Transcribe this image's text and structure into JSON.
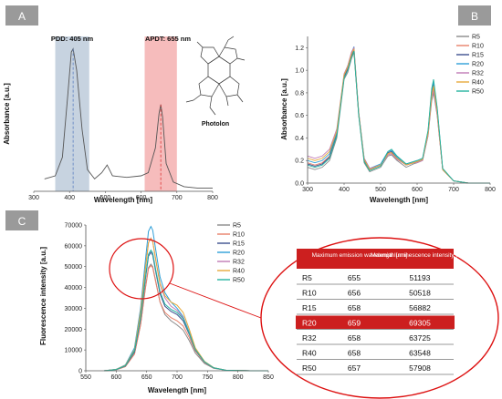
{
  "panels": {
    "A": {
      "label": "A",
      "xlabel": "Wavelength [nm]",
      "ylabel": "Absorbance [a.u.]",
      "x_ticks": [
        "300",
        "400",
        "500",
        "600",
        "700",
        "800"
      ],
      "band1_label": "PDD: 405 nm",
      "band2_label": "APDT: 655 nm",
      "molecule_label": "Photolon"
    },
    "B": {
      "label": "B",
      "xlabel": "Wavelength [nm]",
      "ylabel": "Absorbance [a.u.]",
      "x_ticks": [
        "300",
        "400",
        "500",
        "600",
        "700",
        "800"
      ],
      "y_ticks": [
        "0.0",
        "0.2",
        "0.4",
        "0.6",
        "0.8",
        "1.0",
        "1.2"
      ]
    },
    "C": {
      "label": "C",
      "xlabel": "Wavelength [nm]",
      "ylabel": "Fluorescence intensity [a.u.]",
      "x_ticks": [
        "550",
        "600",
        "650",
        "700",
        "750",
        "800",
        "850"
      ],
      "y_ticks": [
        "0",
        "10000",
        "20000",
        "30000",
        "40000",
        "50000",
        "60000",
        "70000"
      ]
    }
  },
  "legend": [
    {
      "name": "R5",
      "color": "#8a8a8a"
    },
    {
      "name": "R10",
      "color": "#e8806a"
    },
    {
      "name": "R15",
      "color": "#3d4f8f"
    },
    {
      "name": "R20",
      "color": "#2e9fd8"
    },
    {
      "name": "R32",
      "color": "#c07ab5"
    },
    {
      "name": "R40",
      "color": "#e6a93a"
    },
    {
      "name": "R50",
      "color": "#24b3a0"
    }
  ],
  "table": {
    "header_col2": "Maximum emission wavelength [nm]",
    "header_col3": "Maxmial luminescence intensity [a.u.]",
    "rows": [
      {
        "sample": "R5",
        "wavelength": "655",
        "intensity": "51193"
      },
      {
        "sample": "R10",
        "wavelength": "656",
        "intensity": "50518"
      },
      {
        "sample": "R15",
        "wavelength": "658",
        "intensity": "56882"
      },
      {
        "sample": "R20",
        "wavelength": "659",
        "intensity": "69305",
        "highlight": true
      },
      {
        "sample": "R32",
        "wavelength": "658",
        "intensity": "63725"
      },
      {
        "sample": "R40",
        "wavelength": "658",
        "intensity": "63548"
      },
      {
        "sample": "R50",
        "wavelength": "657",
        "intensity": "57908"
      }
    ]
  },
  "chart_data": [
    {
      "type": "line",
      "panel": "A",
      "xlim": [
        300,
        800
      ],
      "series": [
        {
          "x": [
            330,
            360,
            380,
            395,
            405,
            410,
            420,
            435,
            450,
            470,
            490,
            505,
            520,
            560,
            600,
            620,
            640,
            650,
            655,
            660,
            670,
            690,
            720,
            760,
            800
          ],
          "values": [
            0.08,
            0.1,
            0.22,
            0.62,
            0.9,
            0.92,
            0.78,
            0.4,
            0.14,
            0.08,
            0.12,
            0.17,
            0.1,
            0.09,
            0.1,
            0.12,
            0.28,
            0.5,
            0.56,
            0.48,
            0.18,
            0.06,
            0.03,
            0.02,
            0.02
          ]
        }
      ],
      "bands": [
        [
          360,
          455
        ],
        [
          610,
          700
        ]
      ]
    },
    {
      "type": "line",
      "panel": "B",
      "xlim": [
        300,
        800
      ],
      "ylim": [
        0,
        1.3
      ],
      "x": [
        300,
        320,
        340,
        360,
        380,
        400,
        410,
        420,
        427,
        440,
        455,
        470,
        500,
        520,
        530,
        545,
        570,
        590,
        600,
        615,
        630,
        640,
        645,
        655,
        670,
        700,
        740,
        800
      ],
      "series": [
        {
          "name": "R5",
          "values": [
            0.14,
            0.12,
            0.14,
            0.2,
            0.4,
            0.92,
            0.98,
            1.1,
            1.16,
            0.6,
            0.18,
            0.1,
            0.14,
            0.24,
            0.25,
            0.2,
            0.14,
            0.17,
            0.18,
            0.2,
            0.42,
            0.73,
            0.8,
            0.6,
            0.12,
            0.02,
            0.0,
            0.0
          ]
        },
        {
          "name": "R10",
          "values": [
            0.18,
            0.16,
            0.18,
            0.24,
            0.44,
            0.95,
            1.02,
            1.13,
            1.19,
            0.62,
            0.2,
            0.12,
            0.16,
            0.26,
            0.27,
            0.22,
            0.16,
            0.18,
            0.19,
            0.21,
            0.44,
            0.76,
            0.84,
            0.62,
            0.12,
            0.02,
            0.0,
            0.0
          ]
        },
        {
          "name": "R15",
          "values": [
            0.17,
            0.15,
            0.17,
            0.23,
            0.43,
            0.94,
            1.01,
            1.12,
            1.18,
            0.61,
            0.2,
            0.12,
            0.16,
            0.27,
            0.28,
            0.22,
            0.16,
            0.18,
            0.19,
            0.21,
            0.45,
            0.8,
            0.88,
            0.64,
            0.12,
            0.02,
            0.0,
            0.0
          ]
        },
        {
          "name": "R20",
          "values": [
            0.2,
            0.18,
            0.2,
            0.26,
            0.45,
            0.96,
            1.04,
            1.15,
            1.21,
            0.63,
            0.22,
            0.13,
            0.17,
            0.28,
            0.29,
            0.23,
            0.17,
            0.19,
            0.2,
            0.22,
            0.46,
            0.82,
            0.9,
            0.66,
            0.13,
            0.02,
            0.0,
            0.0
          ]
        },
        {
          "name": "R32",
          "values": [
            0.24,
            0.22,
            0.24,
            0.3,
            0.48,
            0.97,
            1.04,
            1.16,
            1.2,
            0.63,
            0.22,
            0.13,
            0.16,
            0.25,
            0.26,
            0.21,
            0.16,
            0.18,
            0.18,
            0.2,
            0.42,
            0.76,
            0.82,
            0.6,
            0.12,
            0.02,
            0.0,
            0.0
          ]
        },
        {
          "name": "R40",
          "values": [
            0.22,
            0.2,
            0.22,
            0.28,
            0.46,
            0.96,
            1.03,
            1.14,
            1.19,
            0.62,
            0.21,
            0.12,
            0.16,
            0.26,
            0.27,
            0.22,
            0.16,
            0.18,
            0.19,
            0.21,
            0.44,
            0.78,
            0.86,
            0.63,
            0.12,
            0.02,
            0.0,
            0.0
          ]
        },
        {
          "name": "R50",
          "values": [
            0.16,
            0.14,
            0.16,
            0.22,
            0.42,
            0.93,
            1.0,
            1.11,
            1.17,
            0.6,
            0.19,
            0.11,
            0.15,
            0.28,
            0.3,
            0.24,
            0.17,
            0.19,
            0.2,
            0.22,
            0.47,
            0.84,
            0.92,
            0.67,
            0.13,
            0.02,
            0.0,
            0.0
          ]
        }
      ]
    },
    {
      "type": "line",
      "panel": "C",
      "xlim": [
        550,
        850
      ],
      "ylim": [
        0,
        70000
      ],
      "x": [
        580,
        600,
        615,
        630,
        640,
        648,
        653,
        657,
        660,
        665,
        672,
        680,
        690,
        700,
        710,
        720,
        730,
        745,
        760,
        780,
        820,
        850
      ],
      "series": [
        {
          "name": "R5",
          "values": [
            0,
            500,
            2000,
            8000,
            22000,
            40000,
            49500,
            51193,
            50000,
            43000,
            33000,
            27000,
            24000,
            22000,
            19500,
            14500,
            8500,
            3500,
            1200,
            300,
            0,
            0
          ]
        },
        {
          "name": "R10",
          "values": [
            0,
            500,
            2000,
            8000,
            22000,
            39500,
            49000,
            50518,
            49500,
            42500,
            33000,
            28000,
            25500,
            24000,
            21500,
            16000,
            9500,
            4000,
            1300,
            300,
            0,
            0
          ]
        },
        {
          "name": "R15",
          "values": [
            0,
            600,
            2300,
            9000,
            25000,
            44000,
            55000,
            56882,
            55500,
            47500,
            37000,
            31000,
            28500,
            27000,
            24000,
            17500,
            10000,
            4200,
            1400,
            300,
            0,
            0
          ]
        },
        {
          "name": "R20",
          "values": [
            0,
            700,
            2800,
            11000,
            30000,
            53000,
            67000,
            69305,
            67500,
            58000,
            45000,
            37500,
            33000,
            30000,
            26000,
            18500,
            10500,
            4400,
            1500,
            300,
            0,
            0
          ]
        },
        {
          "name": "R32",
          "values": [
            0,
            650,
            2600,
            10000,
            28000,
            49000,
            61500,
            63725,
            62000,
            53000,
            41500,
            35000,
            31000,
            29000,
            25500,
            18000,
            10200,
            4300,
            1450,
            300,
            0,
            0
          ]
        },
        {
          "name": "R40",
          "values": [
            0,
            650,
            2600,
            10000,
            28000,
            49000,
            61500,
            63548,
            62000,
            53500,
            42000,
            36000,
            33000,
            31500,
            28000,
            20000,
            11000,
            4500,
            1500,
            300,
            0,
            0
          ]
        },
        {
          "name": "R50",
          "values": [
            0,
            600,
            2400,
            9500,
            25500,
            45000,
            56000,
            57908,
            56500,
            48500,
            38000,
            32000,
            29500,
            28000,
            25000,
            18000,
            10200,
            4300,
            1400,
            300,
            0,
            0
          ]
        }
      ]
    }
  ]
}
